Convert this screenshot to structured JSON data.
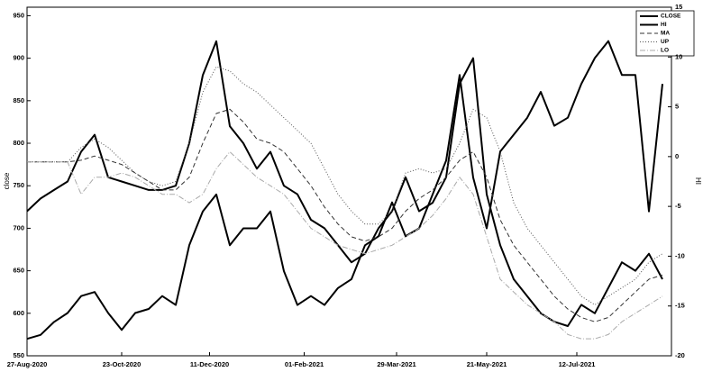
{
  "chart_data": {
    "type": "line",
    "y_label": "close",
    "y2_label": "HI",
    "legend": "upper right",
    "xlim": [
      0,
      286
    ],
    "xticks": [
      {
        "value": 0,
        "label": "27-Aug-2020"
      },
      {
        "value": 42,
        "label": "23-Oct-2020"
      },
      {
        "value": 81,
        "label": "11-Dec-2020"
      },
      {
        "value": 123,
        "label": "01-Feb-2021"
      },
      {
        "value": 164,
        "label": "29-Mar-2021"
      },
      {
        "value": 204,
        "label": "21-May-2021"
      },
      {
        "value": 244,
        "label": "12-Jul-2021"
      }
    ],
    "ylim": [
      550,
      960
    ],
    "yticks": [
      550,
      600,
      650,
      700,
      750,
      800,
      850,
      900,
      950
    ],
    "y2lim": [
      -20,
      15
    ],
    "y2ticks": [
      -20,
      -15,
      -10,
      -5,
      0,
      5,
      10,
      15
    ],
    "x": [
      0,
      6,
      12,
      18,
      24,
      30,
      36,
      42,
      48,
      54,
      60,
      66,
      72,
      78,
      84,
      90,
      96,
      102,
      108,
      114,
      120,
      126,
      132,
      138,
      144,
      150,
      156,
      162,
      168,
      174,
      180,
      186,
      192,
      198,
      204,
      210,
      216,
      222,
      228,
      234,
      240,
      246,
      252,
      258,
      264,
      270,
      276,
      282
    ],
    "series": [
      {
        "name": "CLOSE",
        "color": "#000000",
        "style": "solid",
        "width": 2,
        "values": [
          720,
          735,
          745,
          755,
          790,
          810,
          760,
          755,
          750,
          745,
          745,
          750,
          800,
          880,
          920,
          820,
          800,
          770,
          790,
          750,
          740,
          710,
          700,
          680,
          660,
          670,
          700,
          720,
          760,
          720,
          730,
          760,
          870,
          900,
          740,
          680,
          640,
          620,
          600,
          590,
          585,
          610,
          600,
          630,
          660,
          650,
          670,
          640
        ]
      },
      {
        "name": "HI",
        "color": "#000000",
        "style": "solid",
        "width": 2,
        "axis": "y2",
        "values": [
          -18.3,
          -17.9,
          -16.6,
          -15.7,
          -14,
          -13.6,
          -15.7,
          -17.4,
          -15.7,
          -15.3,
          -14,
          -14.9,
          -8.9,
          -5.5,
          -3.8,
          -8.9,
          -7.2,
          -7.2,
          -5.5,
          -11.5,
          -14.9,
          -14,
          -14.9,
          -13.2,
          -12.3,
          -8.9,
          -8,
          -4.6,
          -8,
          -7.2,
          -3.8,
          -0.4,
          8.2,
          -2.1,
          -7.2,
          0.5,
          2.2,
          3.9,
          6.5,
          3.1,
          3.9,
          7.3,
          9.9,
          11.6,
          8.2,
          8.2,
          -5.5,
          7.3
        ]
      },
      {
        "name": "MA",
        "color": "#333333",
        "style": "dashed",
        "width": 1,
        "values": [
          778,
          778,
          778,
          778,
          780,
          785,
          780,
          775,
          765,
          755,
          745,
          745,
          760,
          800,
          835,
          840,
          825,
          805,
          800,
          790,
          770,
          750,
          725,
          705,
          690,
          685,
          690,
          700,
          720,
          735,
          745,
          760,
          780,
          790,
          760,
          710,
          680,
          660,
          640,
          620,
          605,
          595,
          590,
          595,
          610,
          625,
          640,
          645
        ]
      },
      {
        "name": "UP",
        "color": "#555555",
        "style": "dotted",
        "width": 1,
        "values": [
          778,
          778,
          778,
          778,
          795,
          805,
          795,
          780,
          765,
          755,
          750,
          755,
          800,
          860,
          890,
          885,
          870,
          860,
          845,
          830,
          815,
          800,
          770,
          740,
          720,
          705,
          705,
          720,
          765,
          770,
          765,
          770,
          800,
          840,
          830,
          790,
          730,
          700,
          680,
          660,
          640,
          620,
          610,
          620,
          630,
          640,
          660,
          670
        ]
      },
      {
        "name": "LO",
        "color": "#aaaaaa",
        "style": "dashdot",
        "width": 1,
        "values": [
          778,
          778,
          778,
          778,
          740,
          760,
          760,
          765,
          760,
          750,
          740,
          740,
          730,
          740,
          770,
          790,
          775,
          760,
          750,
          740,
          720,
          700,
          690,
          680,
          675,
          670,
          675,
          680,
          690,
          700,
          715,
          735,
          760,
          740,
          690,
          640,
          625,
          610,
          600,
          590,
          575,
          570,
          570,
          575,
          590,
          600,
          610,
          620
        ]
      }
    ]
  }
}
